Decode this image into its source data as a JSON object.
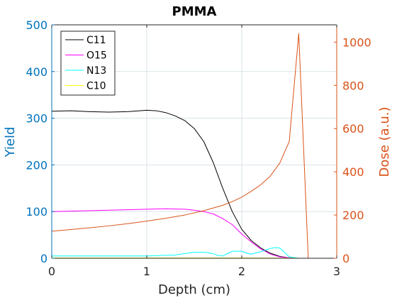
{
  "chart_data": {
    "type": "line",
    "title": "PMMA",
    "xlabel": "Depth (cm)",
    "ylabel_left": "Yield",
    "ylabel_right": "Dose (a.u.)",
    "xlim": [
      0,
      3
    ],
    "ylim_left": [
      0,
      500
    ],
    "ylim_right": [
      0,
      1080
    ],
    "xticks": [
      0,
      1,
      2,
      3
    ],
    "yticks_left": [
      0,
      100,
      200,
      300,
      400,
      500
    ],
    "yticks_right": [
      0,
      200,
      400,
      600,
      800,
      1000
    ],
    "grid": true,
    "legend_position": "top-left",
    "colors": {
      "left_axis": "#0072BD",
      "right_axis": "#D95319",
      "grid": "#d9e3e8"
    },
    "series": [
      {
        "name": "C11",
        "axis": "left",
        "color": "#000000",
        "x": [
          0,
          0.2,
          0.4,
          0.6,
          0.8,
          1.0,
          1.1,
          1.2,
          1.3,
          1.4,
          1.5,
          1.6,
          1.7,
          1.8,
          1.9,
          2.0,
          2.1,
          2.2,
          2.3,
          2.4,
          2.5,
          2.55
        ],
        "y": [
          315,
          316,
          314,
          313,
          314,
          317,
          316,
          312,
          305,
          295,
          278,
          250,
          205,
          150,
          100,
          62,
          38,
          22,
          11,
          4,
          1,
          0
        ]
      },
      {
        "name": "O15",
        "axis": "left",
        "color": "#ff00ff",
        "x": [
          0,
          0.4,
          0.8,
          1.0,
          1.2,
          1.4,
          1.5,
          1.6,
          1.7,
          1.8,
          1.9,
          2.0,
          2.1,
          2.2,
          2.3,
          2.4,
          2.5,
          2.55
        ],
        "y": [
          100,
          102,
          104,
          105,
          106,
          105,
          103,
          100,
          95,
          85,
          72,
          52,
          35,
          20,
          9,
          3,
          1,
          0
        ]
      },
      {
        "name": "N13",
        "axis": "left",
        "color": "#00ffff",
        "x": [
          0,
          0.5,
          1.0,
          1.3,
          1.5,
          1.6,
          1.7,
          1.75,
          1.8,
          1.9,
          2.0,
          2.05,
          2.1,
          2.2,
          2.3,
          2.35,
          2.4,
          2.45,
          2.5,
          2.6
        ],
        "y": [
          5,
          5,
          5,
          7,
          13,
          13,
          10,
          6,
          5,
          15,
          15,
          11,
          9,
          14,
          21,
          23,
          22,
          13,
          3,
          0
        ]
      },
      {
        "name": "C10",
        "axis": "left",
        "color": "#ffff00",
        "x": [
          0,
          1,
          2,
          2.5,
          2.6,
          3
        ],
        "y": [
          0.6,
          0.6,
          0.6,
          0.3,
          0,
          0
        ]
      },
      {
        "axis": "right",
        "color": "#D95319",
        "x": [
          0,
          0.2,
          0.4,
          0.6,
          0.8,
          1.0,
          1.2,
          1.4,
          1.6,
          1.8,
          1.9,
          2.0,
          2.1,
          2.2,
          2.3,
          2.4,
          2.5,
          2.6,
          2.7,
          2.8,
          3.0
        ],
        "y": [
          125,
          133,
          141,
          150,
          160,
          172,
          185,
          200,
          220,
          245,
          262,
          283,
          310,
          340,
          380,
          440,
          540,
          1040,
          0,
          0,
          0
        ]
      }
    ]
  }
}
